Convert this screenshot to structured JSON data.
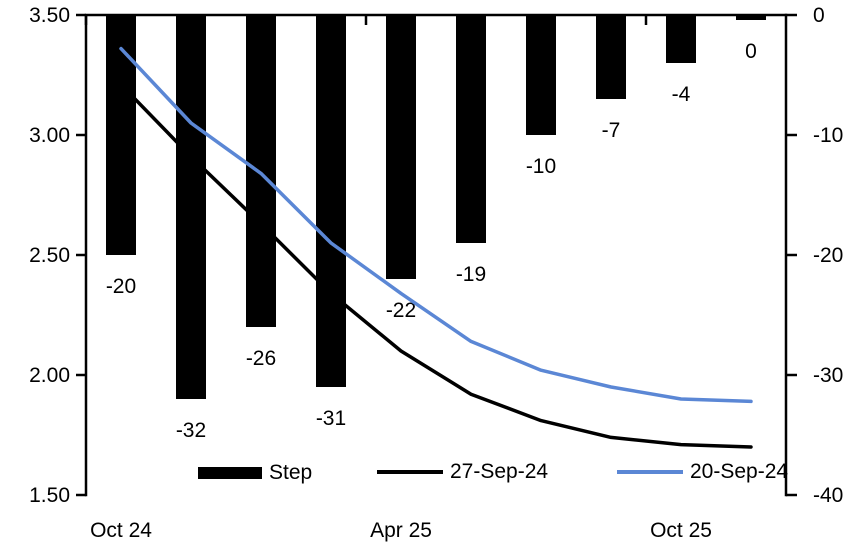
{
  "chart_data": {
    "type": "bar+line",
    "title": "",
    "n_slots": 10,
    "x_axis": {
      "tick_labels": [
        "Oct 24",
        "Apr 25",
        "Oct 25"
      ],
      "tick_label_slots": [
        0,
        4,
        8
      ],
      "boundary_tick_slots": [
        0,
        4,
        8
      ]
    },
    "left_axis": {
      "min": 1.5,
      "max": 3.5,
      "step": 0.5,
      "tick_labels": [
        "3.50",
        "3.00",
        "2.50",
        "2.00",
        "1.50"
      ]
    },
    "right_axis": {
      "min": -40,
      "max": 0,
      "step": 10,
      "tick_labels": [
        "0",
        "-10",
        "-20",
        "-30",
        "-40"
      ]
    },
    "bars": {
      "name": "Step",
      "axis": "right",
      "color": "#000000",
      "values": [
        -20,
        -32,
        -26,
        -31,
        -22,
        -19,
        -10,
        -7,
        -4,
        0
      ],
      "data_labels": [
        "-20",
        "-32",
        "-26",
        "-31",
        "-22",
        "-19",
        "-10",
        "-7",
        "-4",
        "0"
      ]
    },
    "lines": [
      {
        "name": "27-Sep-24",
        "axis": "left",
        "color": "#000000",
        "values": [
          3.21,
          2.91,
          2.63,
          2.34,
          2.1,
          1.92,
          1.81,
          1.74,
          1.71,
          1.7
        ]
      },
      {
        "name": "20-Sep-24",
        "axis": "left",
        "color": "#5B87D5",
        "values": [
          3.36,
          3.05,
          2.84,
          2.55,
          2.34,
          2.14,
          2.02,
          1.95,
          1.9,
          1.89
        ]
      }
    ],
    "legend": [
      {
        "label": "Step",
        "swatch": "bar",
        "color": "#000000"
      },
      {
        "label": "27-Sep-24",
        "swatch": "line",
        "color": "#000000"
      },
      {
        "label": "20-Sep-24",
        "swatch": "line",
        "color": "#5B87D5"
      }
    ],
    "colors": {
      "axis": "#000000",
      "text": "#000000",
      "background": "#ffffff"
    }
  }
}
